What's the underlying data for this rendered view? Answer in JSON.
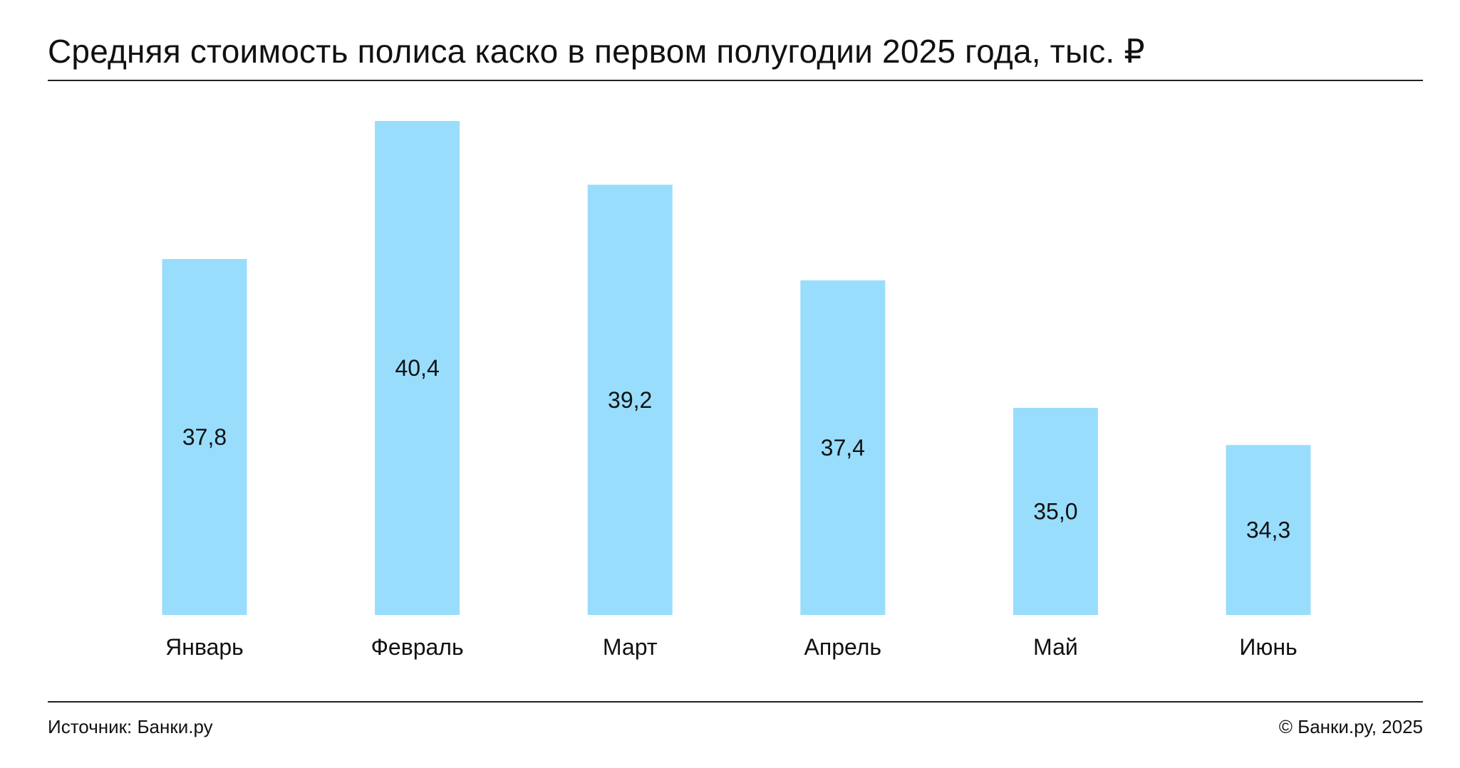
{
  "title": "Средняя стоимость полиса каско в первом полугодии 2025 года, тыс. ₽",
  "footer": {
    "source": "Источник: Банки.ру",
    "copyright": "© Банки.ру, 2025"
  },
  "colors": {
    "bar": "#99ddfc",
    "text": "#111111",
    "rule": "#222222"
  },
  "chart_data": {
    "type": "bar",
    "title": "Средняя стоимость полиса каско в первом полугодии 2025 года, тыс. ₽",
    "xlabel": "",
    "ylabel": "",
    "categories": [
      "Январь",
      "Февраль",
      "Март",
      "Апрель",
      "Май",
      "Июнь"
    ],
    "values": [
      37.8,
      40.4,
      39.2,
      37.4,
      35.0,
      34.3
    ],
    "value_labels": [
      "37,8",
      "40,4",
      "39,2",
      "37,4",
      "35,0",
      "34,3"
    ],
    "ylim": [
      31.1,
      40.4
    ],
    "grid": false,
    "legend": "none"
  }
}
